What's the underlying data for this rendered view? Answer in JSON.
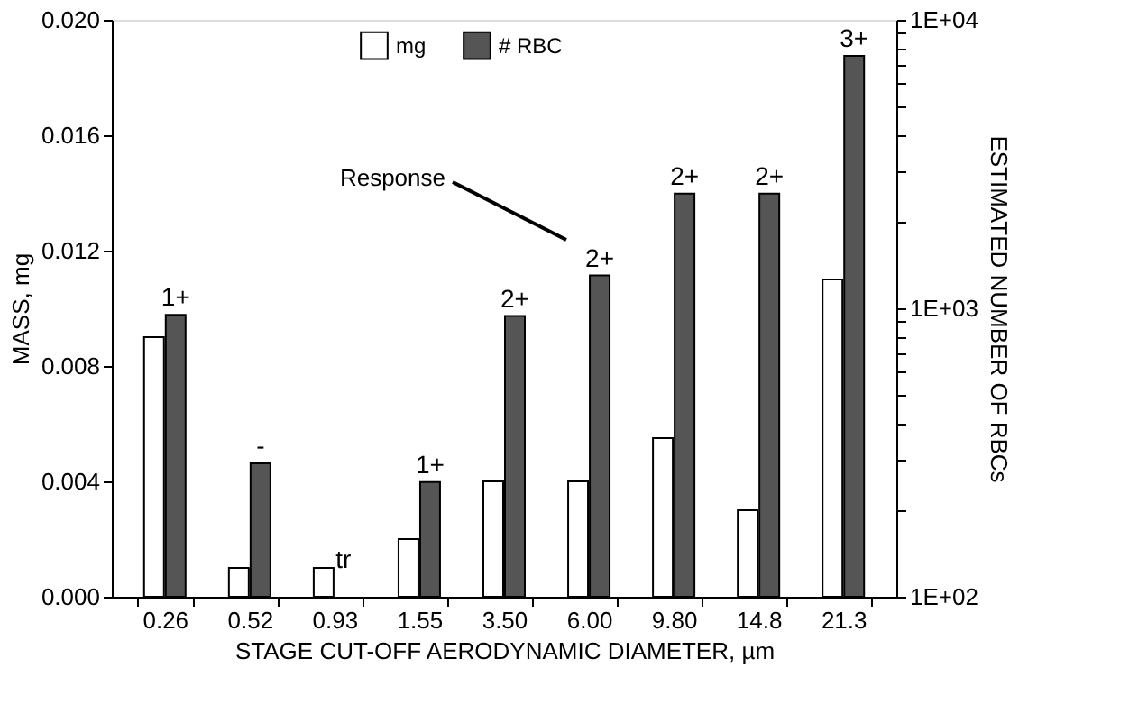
{
  "chart_data": {
    "type": "bar",
    "xlabel": "STAGE CUT-OFF AERODYNAMIC DIAMETER, µm",
    "ylabel": "MASS, mg",
    "y2label": "ESTIMATED NUMBER OF RBCs",
    "categories": [
      "0.26",
      "0.52",
      "0.93",
      "1.55",
      "3.50",
      "6.00",
      "9.80",
      "14.8",
      "21.3"
    ],
    "series": [
      {
        "name": "mg",
        "color": "#ffffff",
        "values": [
          0.009,
          0.001,
          0.001,
          0.002,
          0.004,
          0.004,
          0.0055,
          0.003,
          0.011
        ],
        "value_labels": [
          null,
          null,
          "tr",
          null,
          null,
          null,
          null,
          null,
          null
        ]
      },
      {
        "name": "# RBC",
        "color": "#555555",
        "axis": "y2",
        "values": [
          950,
          290,
          null,
          250,
          940,
          1300,
          2500,
          2500,
          7500
        ],
        "value_labels": [
          "1+",
          "-",
          null,
          "1+",
          "2+",
          "2+",
          "2+",
          "2+",
          "3+"
        ]
      }
    ],
    "ylim": [
      0,
      0.02
    ],
    "yticks": [
      {
        "value": 0,
        "label": "0.000"
      },
      {
        "value": 0.004,
        "label": "0.004"
      },
      {
        "value": 0.008,
        "label": "0.008"
      },
      {
        "value": 0.012,
        "label": "0.012"
      },
      {
        "value": 0.016,
        "label": "0.016"
      },
      {
        "value": 0.02,
        "label": "0.020"
      }
    ],
    "y2lim": [
      100,
      10000
    ],
    "log": "y2",
    "y2ticks": [
      {
        "value": 100,
        "label": "1E+02"
      },
      {
        "value": 200,
        "label": null
      },
      {
        "value": 300,
        "label": null
      },
      {
        "value": 400,
        "label": null
      },
      {
        "value": 500,
        "label": null
      },
      {
        "value": 600,
        "label": null
      },
      {
        "value": 700,
        "label": null
      },
      {
        "value": 800,
        "label": null
      },
      {
        "value": 900,
        "label": null
      },
      {
        "value": 1000,
        "label": "1E+03"
      },
      {
        "value": 2000,
        "label": null
      },
      {
        "value": 3000,
        "label": null
      },
      {
        "value": 4000,
        "label": null
      },
      {
        "value": 5000,
        "label": null
      },
      {
        "value": 6000,
        "label": null
      },
      {
        "value": 7000,
        "label": null
      },
      {
        "value": 8000,
        "label": null
      },
      {
        "value": 9000,
        "label": null
      },
      {
        "value": 10000,
        "label": "1E+04"
      }
    ],
    "annotations": [
      "Response"
    ],
    "legend": "top",
    "grid": false
  }
}
